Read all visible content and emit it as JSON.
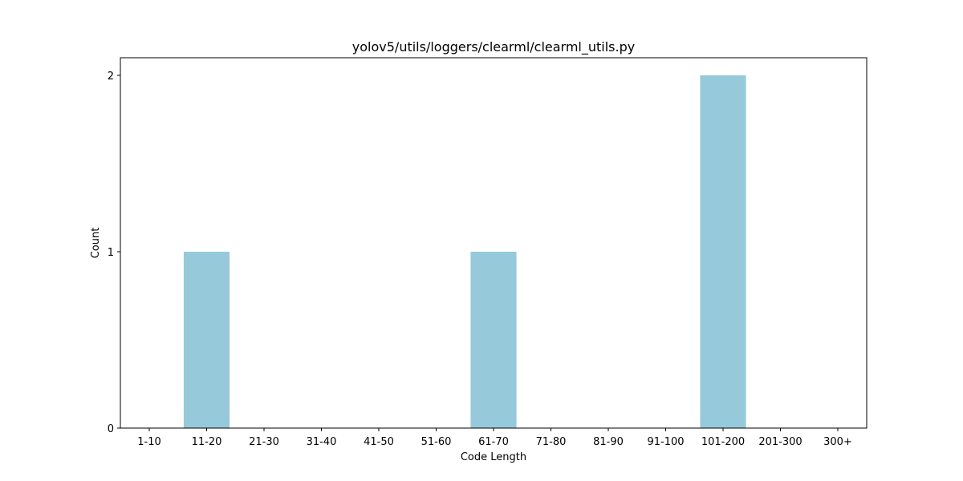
{
  "chart_data": {
    "type": "bar",
    "title": "yolov5/utils/loggers/clearml/clearml_utils.py",
    "xlabel": "Code Length",
    "ylabel": "Count",
    "categories": [
      "1-10",
      "11-20",
      "21-30",
      "31-40",
      "41-50",
      "51-60",
      "61-70",
      "71-80",
      "81-90",
      "91-100",
      "101-200",
      "201-300",
      "300+"
    ],
    "values": [
      0,
      1,
      0,
      0,
      0,
      0,
      1,
      0,
      0,
      0,
      2,
      0,
      0
    ],
    "ylim": [
      0,
      2.1
    ],
    "yticks": [
      0,
      1,
      2
    ],
    "bar_color": "#96cadb",
    "grid": false
  }
}
